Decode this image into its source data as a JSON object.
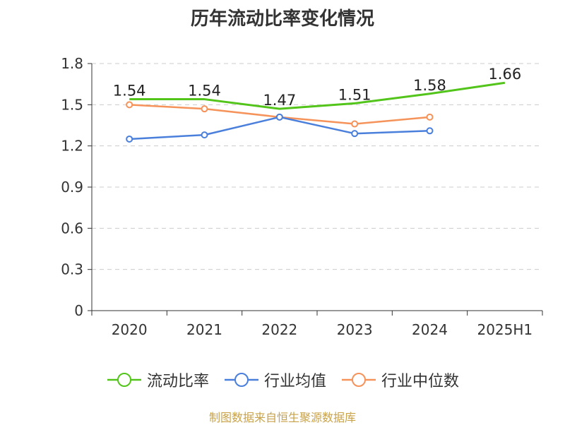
{
  "chart_data": {
    "type": "line",
    "title": "历年流动比率变化情况",
    "categories": [
      "2020",
      "2021",
      "2022",
      "2023",
      "2024",
      "2025H1"
    ],
    "ylim": [
      0,
      1.8
    ],
    "yticks": [
      "0",
      "0.3",
      "0.6",
      "0.9",
      "1.2",
      "1.5",
      "1.8"
    ],
    "grid": true,
    "legend_position": "bottom",
    "series": [
      {
        "name": "流动比率",
        "color": "#52c41a",
        "values": [
          1.54,
          1.54,
          1.47,
          1.51,
          1.58,
          1.66
        ],
        "labels": [
          "1.54",
          "1.54",
          "1.47",
          "1.51",
          "1.58",
          "1.66"
        ]
      },
      {
        "name": "行业均值",
        "color": "#4a7fdb",
        "values": [
          1.25,
          1.28,
          1.41,
          1.29,
          1.31,
          null
        ]
      },
      {
        "name": "行业中位数",
        "color": "#f5935a",
        "values": [
          1.5,
          1.47,
          1.41,
          1.36,
          1.41,
          null
        ]
      }
    ]
  },
  "footer": {
    "text": "制图数据来自恒生聚源数据库",
    "color": "#c8a24a"
  }
}
